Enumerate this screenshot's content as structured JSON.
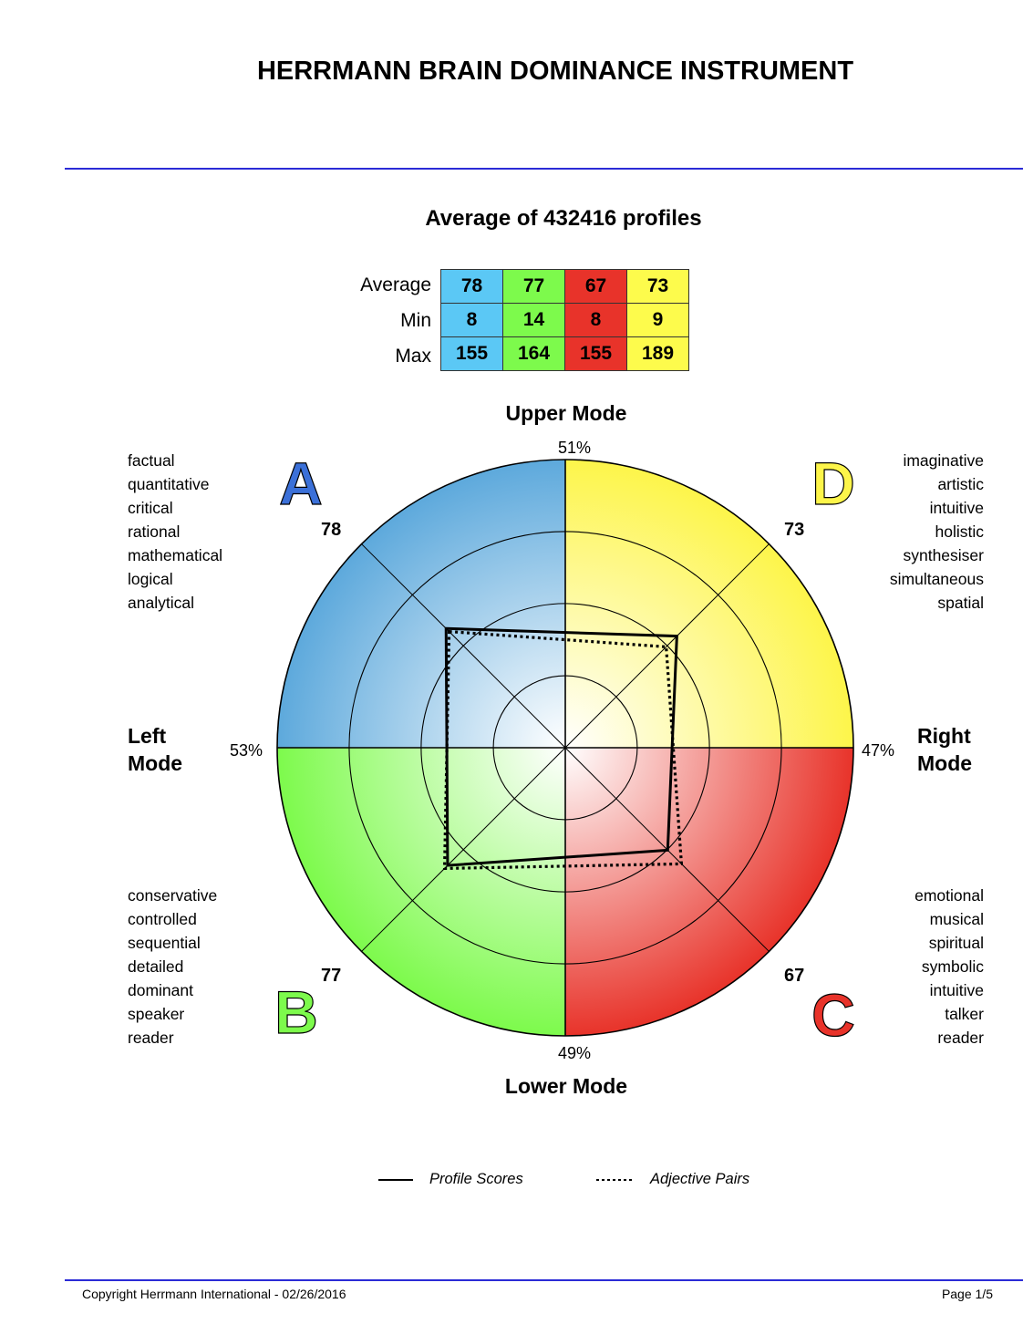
{
  "title": "HERRMANN BRAIN DOMINANCE INSTRUMENT",
  "subtitle": "Average of 432416 profiles",
  "stats_table": {
    "row_labels": [
      "Average",
      "Min",
      "Max"
    ],
    "columns": [
      {
        "quadrant": "A",
        "color": "#5bc8f5",
        "values": [
          "78",
          "8",
          "155"
        ]
      },
      {
        "quadrant": "B",
        "color": "#7dfa4c",
        "values": [
          "77",
          "14",
          "164"
        ]
      },
      {
        "quadrant": "C",
        "color": "#e8332a",
        "values": [
          "67",
          "8",
          "155"
        ]
      },
      {
        "quadrant": "D",
        "color": "#fdfb4c",
        "values": [
          "73",
          "9",
          "189"
        ]
      }
    ]
  },
  "chart_data": {
    "type": "radar",
    "axis_max": 133.3,
    "rings": [
      33.3,
      66.7,
      100,
      133.3
    ],
    "quadrants": [
      {
        "letter": "A",
        "score": "78",
        "color": "#5da9dc",
        "letter_color": "#3b70d8",
        "words": [
          "factual",
          "quantitative",
          "critical",
          "rational",
          "mathematical",
          "logical",
          "analytical"
        ]
      },
      {
        "letter": "D",
        "score": "73",
        "color": "#fdf54a",
        "letter_color": "#fdf54a",
        "words": [
          "imaginative",
          "artistic",
          "intuitive",
          "holistic",
          "synthesiser",
          "simultaneous",
          "spatial"
        ]
      },
      {
        "letter": "C",
        "score": "67",
        "color": "#e8332a",
        "letter_color": "#e8332a",
        "words": [
          "emotional",
          "musical",
          "spiritual",
          "symbolic",
          "intuitive",
          "talker",
          "reader"
        ]
      },
      {
        "letter": "B",
        "score": "77",
        "color": "#7dfa4c",
        "letter_color": "#7dfa4c",
        "words": [
          "conservative",
          "controlled",
          "sequential",
          "detailed",
          "dominant",
          "speaker",
          "reader"
        ]
      }
    ],
    "modes": {
      "upper": {
        "label": "Upper Mode",
        "pct": "51%"
      },
      "lower": {
        "label": "Lower Mode",
        "pct": "49%"
      },
      "left": {
        "label1": "Left",
        "label2": "Mode",
        "pct": "53%"
      },
      "right": {
        "label1": "Right",
        "label2": "Mode",
        "pct": "47%"
      }
    },
    "series": [
      {
        "name": "Profile Scores",
        "style": "solid",
        "values": {
          "A": 78,
          "D": 73,
          "C": 67,
          "B": 77
        }
      },
      {
        "name": "Adjective Pairs",
        "style": "dotted",
        "values": {
          "A": 76,
          "D": 66,
          "C": 76,
          "B": 79
        }
      }
    ],
    "legend_placement": "bottom"
  },
  "footer": {
    "copyright": "Copyright Herrmann International - 02/26/2016",
    "page": "Page 1/5"
  }
}
